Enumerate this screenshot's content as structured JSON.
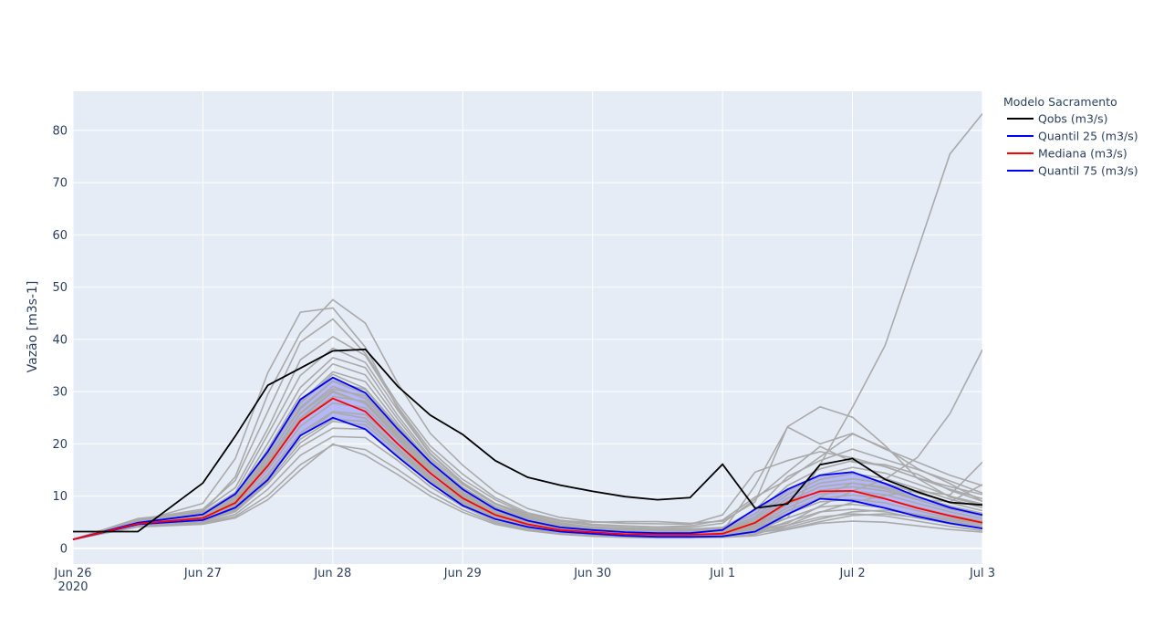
{
  "chart_data": {
    "type": "line",
    "title": "",
    "xlabel": "",
    "ylabel": "Vazão [m3s-1]",
    "x_ticks": [
      "Jun 26",
      "Jun 27",
      "Jun 28",
      "Jun 29",
      "Jun 30",
      "Jul 1",
      "Jul 2",
      "Jul 3"
    ],
    "x_tick_year": "2020",
    "xlim": [
      "2020-06-26 00:00",
      "2020-07-03 00:00"
    ],
    "y_ticks": [
      0,
      10,
      20,
      30,
      40,
      50,
      60,
      70,
      80
    ],
    "ylim": [
      -3,
      87.5
    ],
    "grid": true,
    "legend_title": "Modelo Sacramento",
    "legend_position": "right",
    "x": [
      "2020-06-26 00:00",
      "2020-06-26 12:00",
      "2020-06-27 00:00",
      "2020-06-27 06:00",
      "2020-06-27 12:00",
      "2020-06-27 18:00",
      "2020-06-28 00:00",
      "2020-06-28 06:00",
      "2020-06-28 12:00",
      "2020-06-28 18:00",
      "2020-06-29 00:00",
      "2020-06-29 06:00",
      "2020-06-29 12:00",
      "2020-06-29 18:00",
      "2020-06-30 00:00",
      "2020-06-30 06:00",
      "2020-06-30 12:00",
      "2020-06-30 18:00",
      "2020-07-01 00:00",
      "2020-07-01 06:00",
      "2020-07-01 12:00",
      "2020-07-01 18:00",
      "2020-07-02 00:00",
      "2020-07-02 06:00",
      "2020-07-02 12:00",
      "2020-07-02 18:00",
      "2020-07-03 00:00"
    ],
    "series": [
      {
        "name": "Qobs (m3/s)",
        "color": "#000000",
        "values": [
          3.2,
          3.2,
          12.5,
          21.5,
          31.2,
          34.5,
          37.8,
          38.1,
          31.0,
          25.5,
          21.8,
          16.8,
          13.6,
          12.1,
          10.9,
          9.9,
          9.3,
          9.7,
          16.1,
          7.7,
          8.5,
          16.0,
          17.2,
          13.2,
          10.8,
          8.8,
          8.3
        ]
      },
      {
        "name": "Quantil 25 (m3/s)",
        "color": "#0000ff",
        "values": [
          1.7,
          4.6,
          5.4,
          7.8,
          13.1,
          21.6,
          25.0,
          22.8,
          17.5,
          12.5,
          8.2,
          5.6,
          4.1,
          3.2,
          2.8,
          2.4,
          2.2,
          2.2,
          2.3,
          3.2,
          6.5,
          9.5,
          9.1,
          7.7,
          6.1,
          4.8,
          3.8
        ]
      },
      {
        "name": "Mediana (m3/s)",
        "color": "#ff0000",
        "values": [
          1.7,
          4.7,
          5.8,
          8.7,
          15.8,
          24.4,
          28.7,
          26.2,
          20.0,
          14.4,
          9.6,
          6.4,
          4.6,
          3.5,
          3.1,
          2.7,
          2.6,
          2.6,
          2.8,
          4.9,
          8.8,
          10.9,
          11.0,
          9.5,
          7.7,
          6.2,
          4.9
        ]
      },
      {
        "name": "Quantil 75 (m3/s)",
        "color": "#0000ff",
        "values": [
          1.7,
          4.9,
          6.5,
          10.4,
          18.5,
          28.5,
          32.7,
          29.8,
          22.8,
          16.5,
          11.3,
          7.5,
          5.3,
          4.0,
          3.5,
          3.1,
          2.9,
          2.9,
          3.5,
          7.5,
          11.3,
          14.0,
          14.6,
          12.4,
          9.9,
          7.8,
          6.4
        ]
      }
    ],
    "ensemble": {
      "color": "#aaaaaa",
      "members": [
        [
          1.7,
          5.1,
          8.6,
          17.2,
          33.6,
          45.2,
          46.0,
          38.5,
          26.8,
          18.2,
          12.6,
          8.6,
          6.5,
          5.3,
          5.0,
          5.1,
          5.1,
          4.8,
          5.2,
          8.9,
          23.3,
          27.1,
          25.1,
          19.7,
          13.4,
          9.8,
          8.2
        ],
        [
          1.7,
          5.7,
          7.0,
          13.7,
          29.5,
          41.2,
          47.6,
          43.1,
          31.6,
          22.0,
          15.9,
          10.8,
          7.6,
          5.9,
          5.1,
          4.8,
          4.7,
          4.6,
          6.4,
          14.6,
          16.8,
          18.5,
          17.3,
          15.6,
          13.5,
          11.8,
          10.3
        ],
        [
          1.7,
          5.5,
          7.5,
          13.0,
          26.2,
          39.5,
          43.9,
          37.3,
          27.7,
          19.6,
          14.2,
          9.7,
          6.8,
          5.4,
          4.6,
          4.3,
          4.1,
          4.3,
          5.4,
          9.8,
          13.1,
          17.5,
          21.9,
          19.2,
          15.3,
          12.4,
          9.0
        ],
        [
          1.7,
          5.3,
          7.2,
          11.6,
          22.9,
          36.1,
          40.5,
          36.9,
          27.1,
          18.8,
          13.2,
          9.3,
          6.5,
          5.2,
          4.4,
          4.2,
          4.1,
          4.0,
          4.8,
          9.4,
          14.6,
          19.5,
          16.5,
          16.0,
          14.2,
          11.1,
          9.0
        ],
        [
          1.7,
          5.2,
          6.8,
          10.7,
          21.8,
          33.1,
          38.3,
          35.6,
          26.4,
          18.0,
          12.5,
          8.6,
          6.2,
          4.9,
          4.1,
          3.9,
          3.8,
          3.7,
          4.0,
          7.3,
          13.7,
          16.8,
          19.0,
          17.0,
          15.1,
          12.9,
          10.6
        ],
        [
          1.7,
          5.1,
          6.5,
          10.0,
          20.1,
          30.8,
          36.5,
          34.6,
          25.4,
          17.4,
          12.2,
          8.4,
          6.0,
          4.8,
          4.0,
          3.8,
          3.6,
          3.6,
          3.8,
          6.6,
          12.0,
          15.2,
          16.8,
          15.7,
          13.5,
          11.3,
          9.5
        ],
        [
          1.7,
          5.0,
          6.3,
          9.6,
          19.0,
          29.3,
          35.3,
          33.2,
          24.7,
          17.0,
          11.7,
          8.0,
          5.8,
          4.6,
          3.8,
          3.6,
          3.4,
          3.4,
          3.6,
          6.0,
          11.0,
          14.0,
          15.5,
          14.4,
          12.3,
          10.0,
          8.5
        ],
        [
          1.7,
          4.9,
          6.1,
          9.2,
          18.1,
          28.1,
          33.8,
          31.9,
          23.9,
          16.5,
          11.4,
          7.7,
          5.6,
          4.5,
          3.7,
          3.5,
          3.3,
          3.3,
          3.4,
          5.6,
          10.3,
          13.2,
          14.3,
          13.4,
          11.4,
          9.4,
          7.8
        ],
        [
          1.7,
          4.8,
          6.0,
          8.9,
          17.4,
          27.0,
          32.0,
          30.4,
          23.1,
          16.0,
          11.0,
          7.4,
          5.4,
          4.3,
          3.6,
          3.3,
          3.2,
          3.2,
          3.3,
          5.2,
          9.6,
          12.5,
          13.3,
          12.5,
          10.6,
          8.7,
          7.2
        ],
        [
          1.7,
          4.8,
          5.9,
          8.6,
          16.6,
          25.8,
          30.5,
          29.2,
          22.4,
          15.4,
          10.6,
          7.1,
          5.2,
          4.2,
          3.5,
          3.2,
          3.1,
          3.1,
          3.2,
          4.9,
          9.0,
          11.8,
          12.5,
          11.7,
          9.9,
          8.1,
          6.7
        ],
        [
          1.7,
          4.7,
          5.8,
          8.3,
          15.9,
          24.6,
          29.1,
          28.1,
          21.6,
          14.9,
          10.2,
          6.8,
          5.0,
          4.0,
          3.4,
          3.1,
          3.0,
          3.0,
          3.1,
          4.6,
          8.4,
          11.1,
          11.8,
          11.0,
          9.3,
          7.5,
          6.2
        ],
        [
          1.7,
          4.6,
          5.6,
          8.0,
          15.1,
          23.4,
          27.8,
          26.9,
          20.8,
          14.4,
          9.8,
          6.5,
          4.8,
          3.8,
          3.2,
          3.0,
          2.9,
          2.9,
          3.0,
          4.3,
          7.8,
          10.4,
          11.0,
          10.3,
          8.6,
          7.0,
          5.7
        ],
        [
          1.7,
          4.5,
          5.5,
          7.7,
          14.2,
          22.1,
          26.2,
          25.6,
          19.9,
          13.8,
          9.4,
          6.2,
          4.6,
          3.7,
          3.1,
          2.9,
          2.8,
          2.8,
          2.9,
          4.0,
          7.2,
          9.6,
          10.2,
          9.5,
          7.9,
          6.4,
          5.2
        ],
        [
          1.7,
          4.4,
          5.3,
          7.4,
          13.4,
          20.9,
          24.7,
          24.3,
          19.0,
          13.2,
          9.0,
          5.9,
          4.4,
          3.5,
          3.0,
          2.8,
          2.7,
          2.7,
          2.8,
          3.7,
          6.6,
          8.9,
          9.4,
          8.7,
          7.2,
          5.8,
          4.7
        ],
        [
          1.7,
          4.3,
          5.1,
          7.0,
          12.4,
          19.4,
          23.0,
          22.8,
          17.9,
          12.5,
          8.5,
          5.6,
          4.1,
          3.3,
          2.8,
          2.6,
          2.5,
          2.5,
          2.6,
          3.3,
          5.8,
          7.9,
          8.4,
          7.8,
          6.4,
          5.2,
          4.2
        ],
        [
          1.7,
          4.2,
          4.9,
          6.5,
          11.3,
          17.8,
          21.4,
          21.2,
          16.8,
          11.8,
          8.0,
          5.2,
          3.9,
          3.1,
          2.7,
          2.5,
          2.4,
          2.4,
          2.5,
          3.0,
          5.1,
          7.0,
          7.5,
          7.0,
          5.8,
          4.7,
          3.8
        ],
        [
          1.7,
          4.2,
          4.7,
          6.1,
          10.1,
          16.0,
          19.8,
          18.9,
          15.1,
          10.8,
          7.4,
          4.9,
          3.6,
          2.9,
          2.5,
          2.3,
          2.2,
          2.2,
          2.3,
          2.7,
          4.4,
          6.0,
          6.6,
          6.2,
          5.2,
          4.2,
          3.4
        ],
        [
          1.7,
          4.1,
          4.6,
          5.8,
          9.3,
          15.0,
          20.0,
          17.8,
          14.1,
          10.0,
          6.9,
          4.6,
          3.4,
          2.7,
          2.3,
          2.1,
          2.0,
          2.0,
          2.1,
          2.4,
          3.6,
          4.8,
          5.2,
          5.0,
          4.3,
          3.6,
          3.1
        ],
        [
          1.7,
          4.6,
          5.9,
          8.8,
          16.2,
          25.0,
          30.1,
          27.7,
          21.2,
          14.8,
          10.1,
          6.7,
          4.9,
          3.9,
          3.3,
          3.0,
          2.9,
          2.9,
          3.2,
          12.0,
          23.2,
          20.0,
          22.0,
          19.0,
          16.5,
          14.0,
          12.0
        ],
        [
          1.7,
          4.9,
          6.4,
          9.9,
          18.3,
          27.8,
          33.3,
          30.6,
          23.4,
          16.2,
          11.1,
          7.3,
          5.3,
          4.2,
          3.6,
          3.3,
          3.2,
          3.2,
          3.9,
          5.1,
          6.4,
          9.8,
          12.5,
          11.4,
          9.4,
          8.9,
          12.2
        ],
        [
          1.7,
          4.8,
          6.2,
          9.4,
          17.6,
          26.7,
          32.0,
          29.6,
          22.7,
          15.8,
          10.8,
          7.1,
          5.2,
          4.1,
          3.5,
          3.2,
          3.1,
          3.1,
          3.3,
          4.1,
          5.8,
          16.0,
          27.0,
          38.8,
          57.0,
          75.5,
          83.2
        ],
        [
          1.7,
          4.7,
          6.0,
          9.0,
          16.8,
          25.9,
          31.0,
          28.7,
          22.0,
          15.3,
          10.5,
          6.9,
          5.0,
          4.0,
          3.4,
          3.1,
          3.0,
          3.0,
          3.1,
          3.6,
          4.8,
          8.1,
          11.0,
          13.2,
          17.4,
          25.8,
          38.0
        ],
        [
          1.7,
          4.6,
          5.8,
          8.6,
          16.0,
          24.9,
          29.9,
          27.7,
          21.3,
          14.9,
          10.2,
          6.7,
          4.9,
          3.9,
          3.3,
          3.0,
          2.9,
          2.9,
          3.0,
          3.4,
          4.4,
          6.9,
          8.8,
          10.1,
          11.0,
          10.2,
          16.5
        ],
        [
          1.7,
          4.4,
          5.4,
          7.6,
          13.6,
          21.5,
          26.0,
          24.9,
          19.3,
          13.5,
          9.2,
          6.1,
          4.5,
          3.6,
          3.0,
          2.8,
          2.7,
          2.7,
          2.8,
          3.1,
          4.0,
          5.6,
          7.0,
          7.3,
          6.5,
          5.5,
          4.6
        ],
        [
          1.7,
          4.3,
          5.2,
          7.2,
          12.8,
          20.2,
          24.3,
          23.6,
          18.5,
          12.9,
          8.8,
          5.8,
          4.3,
          3.4,
          2.9,
          2.7,
          2.6,
          2.6,
          2.7,
          3.0,
          3.7,
          5.1,
          6.3,
          6.6,
          5.9,
          4.9,
          4.1
        ]
      ]
    },
    "quantile_band_color": "#7777ff"
  }
}
